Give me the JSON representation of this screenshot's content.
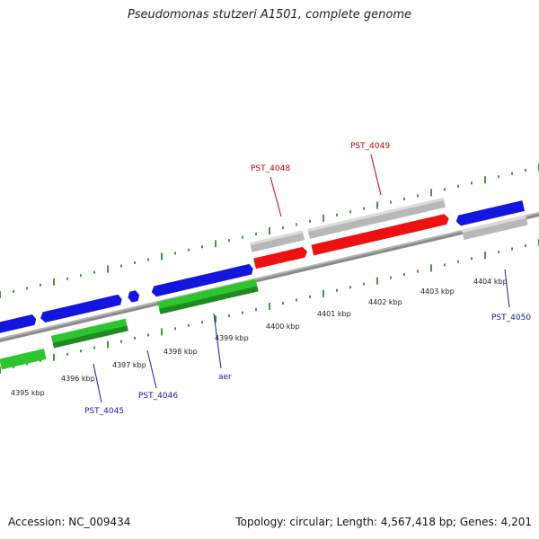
{
  "title": "Pseudomonas stutzeri A1501, complete genome",
  "footer": {
    "accession": "Accession: NC_009434",
    "summary": "Topology: circular; Length: 4,567,418 bp; Genes: 4,201"
  },
  "colors": {
    "backbone": "#8a8a8a",
    "tick": "#1a7a1a",
    "forward_cds": "#1515e0",
    "reverse_cds": "#2ec42e",
    "highlight_cds": "#ee1111",
    "pseudo_cds": "#b8b8b8",
    "label_blue": "#1a1aa0",
    "label_red": "#cc0000"
  },
  "axis": {
    "tick_labels": [
      "4395 kbp",
      "4396 kbp",
      "4397 kbp",
      "4398 kbp",
      "4399 kbp",
      "4400 kbp",
      "4401 kbp",
      "4402 kbp",
      "4403 kbp",
      "4404 kbp"
    ]
  },
  "genes": [
    {
      "label": "PST_4045",
      "color": "label_blue"
    },
    {
      "label": "PST_4046",
      "color": "label_blue"
    },
    {
      "label": "aer",
      "color": "label_blue"
    },
    {
      "label": "PST_4048",
      "color": "label_red"
    },
    {
      "label": "PST_4049",
      "color": "label_red"
    },
    {
      "label": "PST_4050",
      "color": "label_blue"
    }
  ]
}
